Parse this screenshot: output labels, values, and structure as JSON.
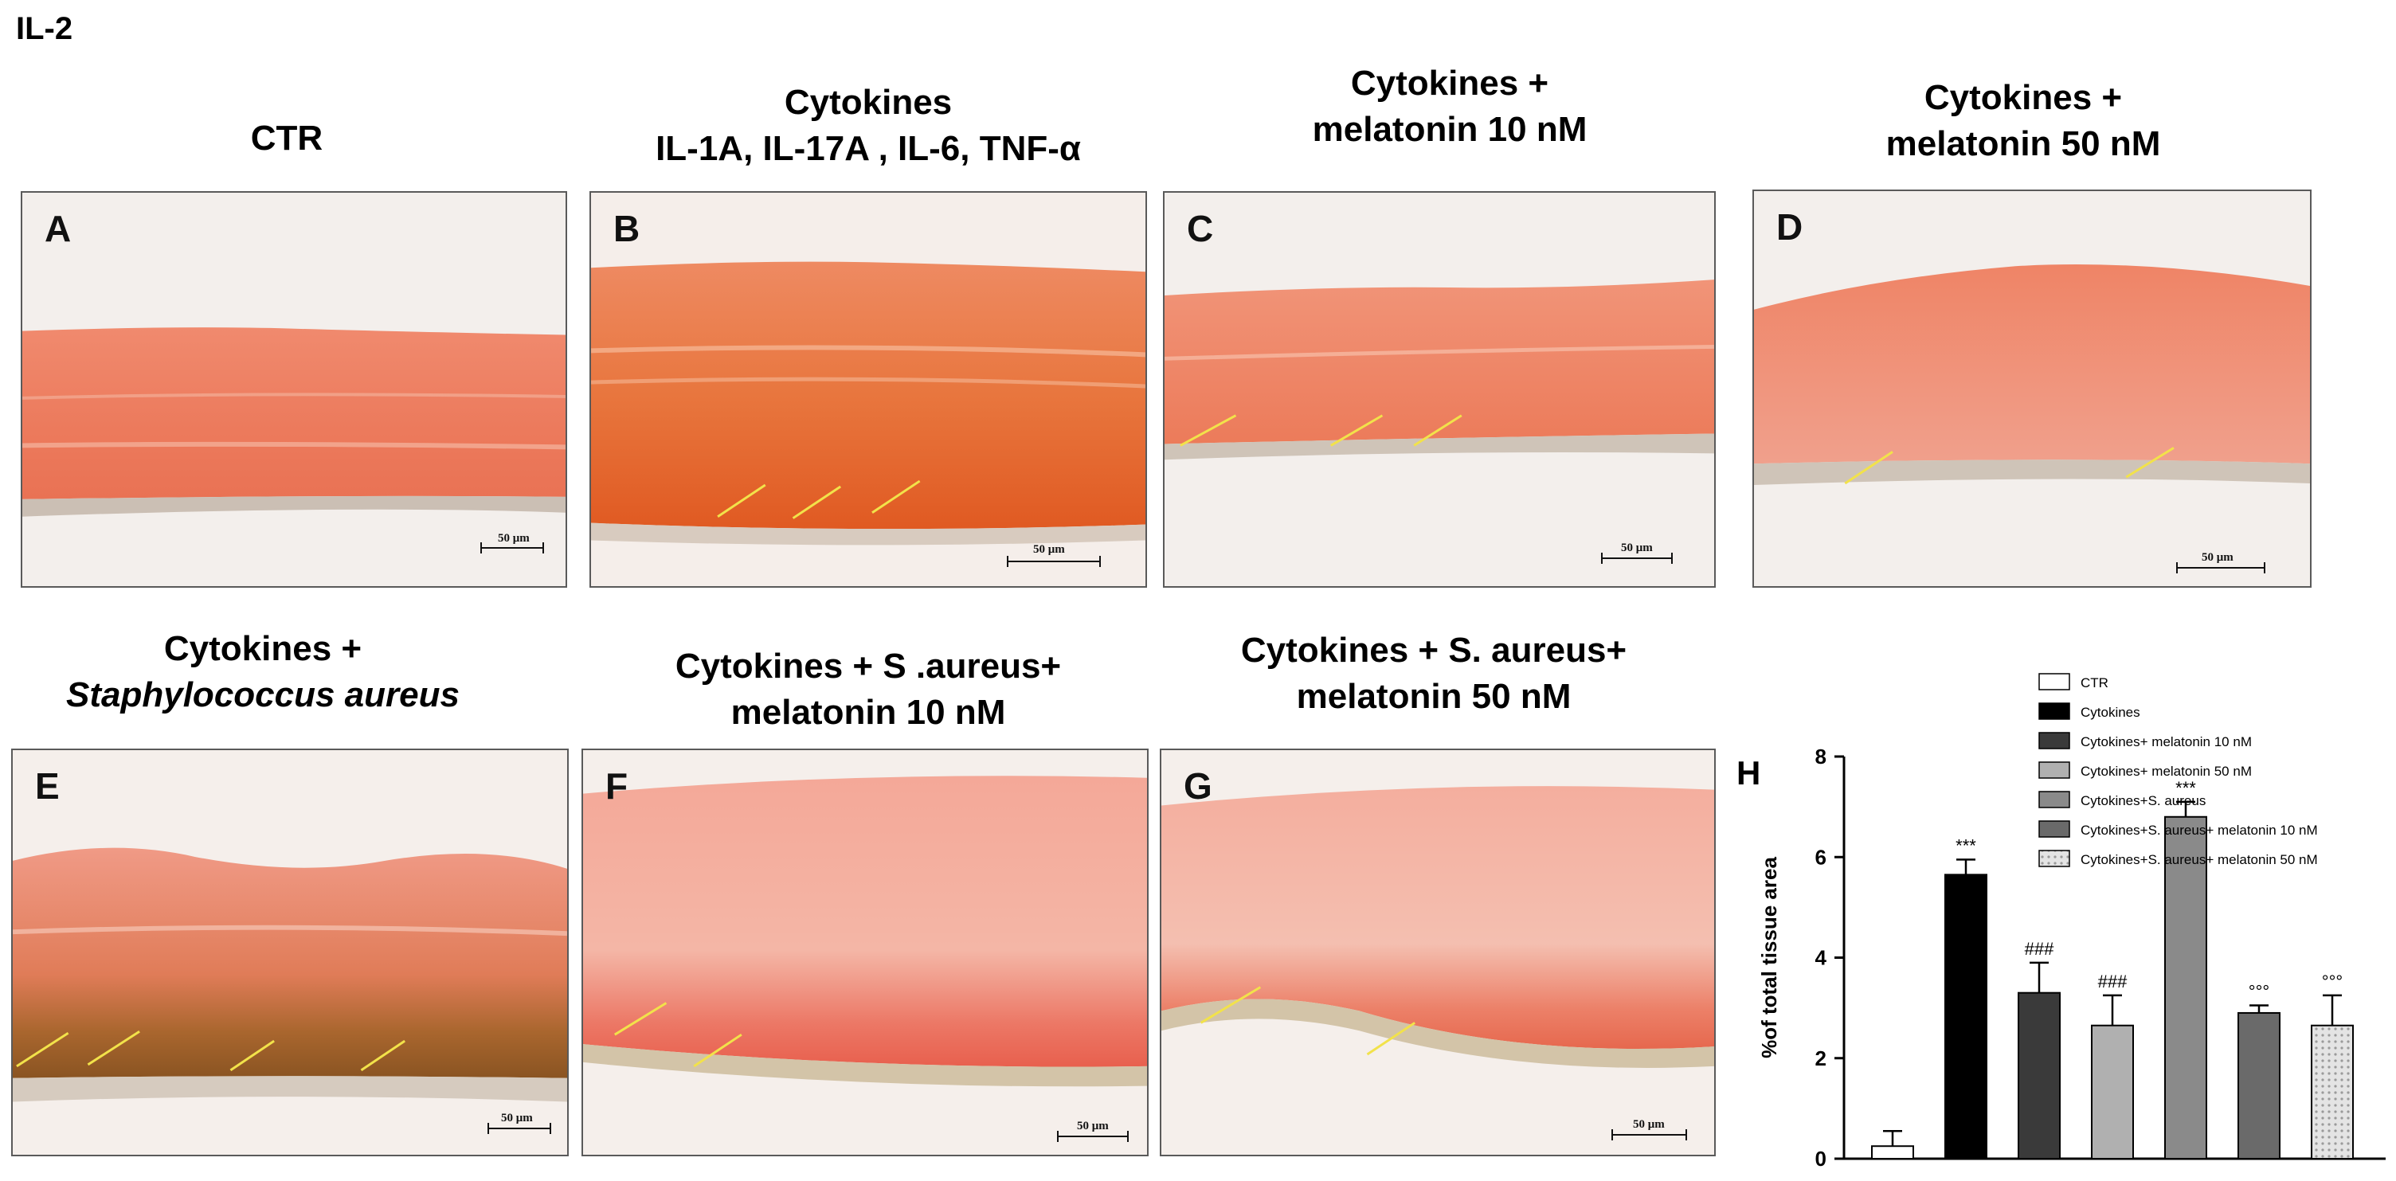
{
  "figure_label": "IL-2",
  "panels": [
    {
      "letter": "A",
      "title_lines": [
        "CTR"
      ],
      "scale": "50 μm"
    },
    {
      "letter": "B",
      "title_lines": [
        "Cytokines",
        "IL-1A, IL-17A , IL-6, TNF-α"
      ],
      "scale": "50 μm"
    },
    {
      "letter": "C",
      "title_lines": [
        "Cytokines +",
        "melatonin 10 nM"
      ],
      "scale": "50 μm"
    },
    {
      "letter": "D",
      "title_lines": [
        "Cytokines +",
        "melatonin 50 nM"
      ],
      "scale": "50 μm"
    },
    {
      "letter": "E",
      "title_lines": [
        "Cytokines +",
        "Staphylococcus aureus"
      ],
      "scale": "50 μm"
    },
    {
      "letter": "F",
      "title_lines": [
        "Cytokines + S .aureus+",
        "melatonin 10 nM"
      ],
      "scale": "50 μm"
    },
    {
      "letter": "G",
      "title_lines": [
        "Cytokines + S. aureus+",
        "melatonin 50 nM"
      ],
      "scale": "50 μm"
    }
  ],
  "chart_data": {
    "type": "bar",
    "panel_letter": "H",
    "ylabel": "%of total tissue area",
    "ylim": [
      0,
      8
    ],
    "yticks": [
      0,
      2,
      4,
      6,
      8
    ],
    "categories": [
      "CTR",
      "Cytokines",
      "Cytokines+ melatonin 10 nM",
      "Cytokines+ melatonin 50 nM",
      "Cytokines+S. aureus",
      "Cytokines+S. aureus+ melatonin 10 nM",
      "Cytokines+S. aureus+ melatonin 50 nM"
    ],
    "legend": [
      "CTR",
      "Cytokines",
      "Cytokines+ melatonin 10 nM",
      "Cytokines+ melatonin 50 nM",
      "Cytokines+S. aureus",
      "Cytokines+S. aureus+ melatonin 10 nM",
      "Cytokines+S. aureus+ melatonin 50 nM"
    ],
    "values": [
      0.25,
      5.65,
      3.3,
      2.65,
      6.8,
      2.9,
      2.65
    ],
    "errors": [
      0.3,
      0.3,
      0.6,
      0.6,
      0.3,
      0.15,
      0.6
    ],
    "annotations": [
      "",
      "***",
      "###",
      "###",
      "***",
      "°°°",
      "°°°"
    ],
    "colors": [
      "#ffffff",
      "#000000",
      "#3a3a3a",
      "#b0b0b0",
      "#8a8a8a",
      "#6a6a6a",
      "#d8d8d8"
    ],
    "legend_position": "top-right",
    "grid": false
  }
}
